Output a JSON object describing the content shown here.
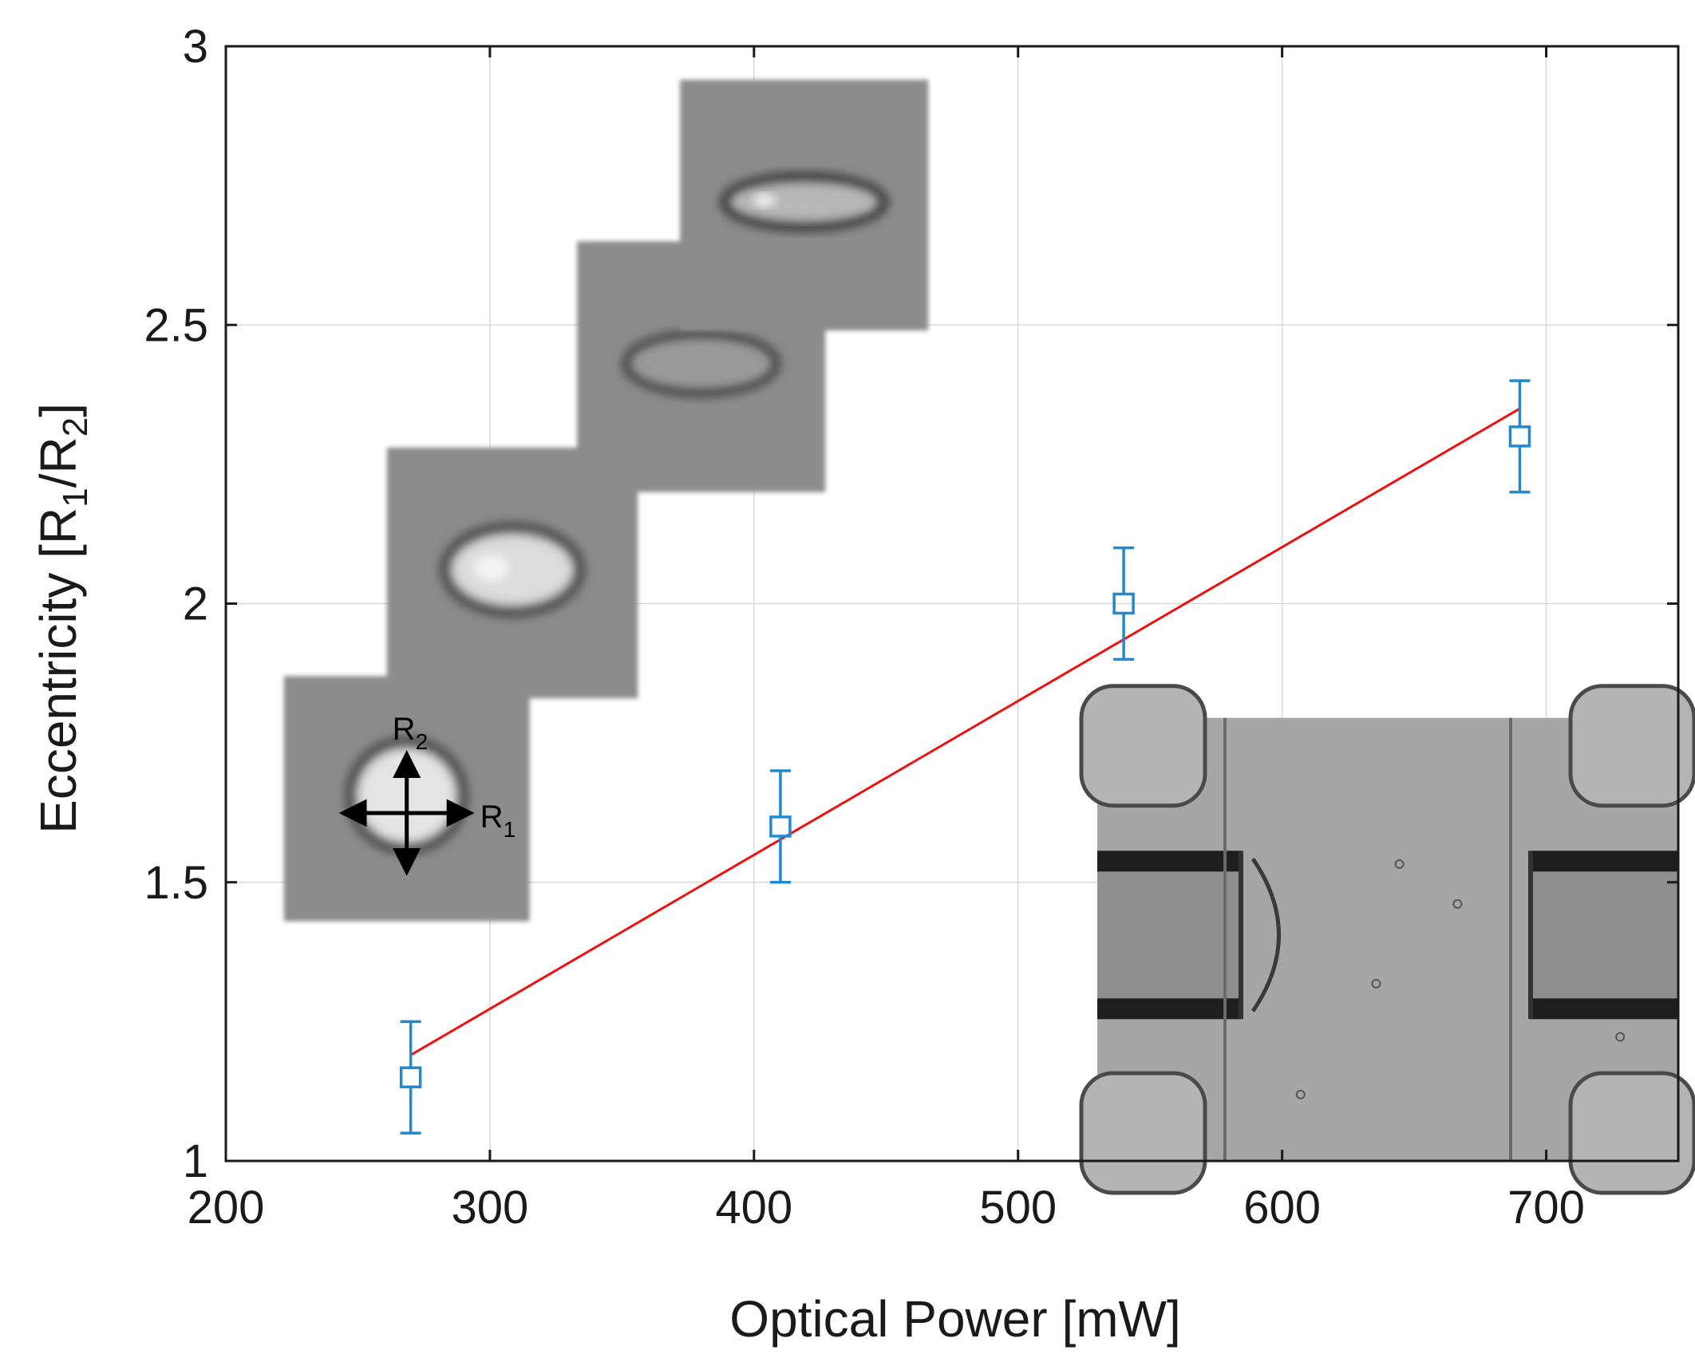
{
  "chart_data": {
    "type": "scatter",
    "title": "",
    "xlabel": "Optical Power [mW]",
    "ylabel": {
      "prefix": "Eccentricity  [R",
      "sub1": "1",
      "mid": "/R",
      "sub2": "2",
      "suffix": "]"
    },
    "xlim": [
      200,
      750
    ],
    "ylim": [
      1,
      3
    ],
    "xticks": [
      200,
      300,
      400,
      500,
      600,
      700
    ],
    "yticks": [
      1,
      1.5,
      2,
      2.5,
      3
    ],
    "xtick_labels": [
      "200",
      "300",
      "400",
      "500",
      "600",
      "700"
    ],
    "ytick_labels": [
      "1",
      "1.5",
      "2",
      "2.5",
      "3"
    ],
    "grid": true,
    "series": [
      {
        "marker": "open-square",
        "color": "#1f8ad1",
        "x": [
          270,
          410,
          540,
          690
        ],
        "y": [
          1.15,
          1.6,
          2.0,
          2.3
        ],
        "err_low": [
          1.05,
          1.5,
          1.9,
          2.2
        ],
        "err_high": [
          1.25,
          1.7,
          2.1,
          2.4
        ]
      }
    ],
    "fit_line": {
      "color": "#ee1111",
      "x": [
        270,
        690
      ],
      "y": [
        1.19,
        2.35
      ]
    },
    "annotation": {
      "r1": {
        "base": "R",
        "sub": "1"
      },
      "r2": {
        "base": "R",
        "sub": "2"
      }
    },
    "insets": [
      {
        "kind": "cell-round",
        "x0": 222,
        "x1": 315,
        "y0": 1.43,
        "y1": 1.87
      },
      {
        "kind": "cell-ellipse",
        "x0": 261,
        "x1": 356,
        "y0": 1.83,
        "y1": 2.28
      },
      {
        "kind": "cell-elongated",
        "x0": 333,
        "x1": 427,
        "y0": 2.2,
        "y1": 2.65
      },
      {
        "kind": "cell-thin",
        "x0": 372,
        "x1": 466,
        "y0": 2.49,
        "y1": 2.94
      },
      {
        "kind": "microchannel",
        "x0": 530,
        "x1": 750,
        "y0": 1.0,
        "y1": 1.795
      }
    ]
  }
}
